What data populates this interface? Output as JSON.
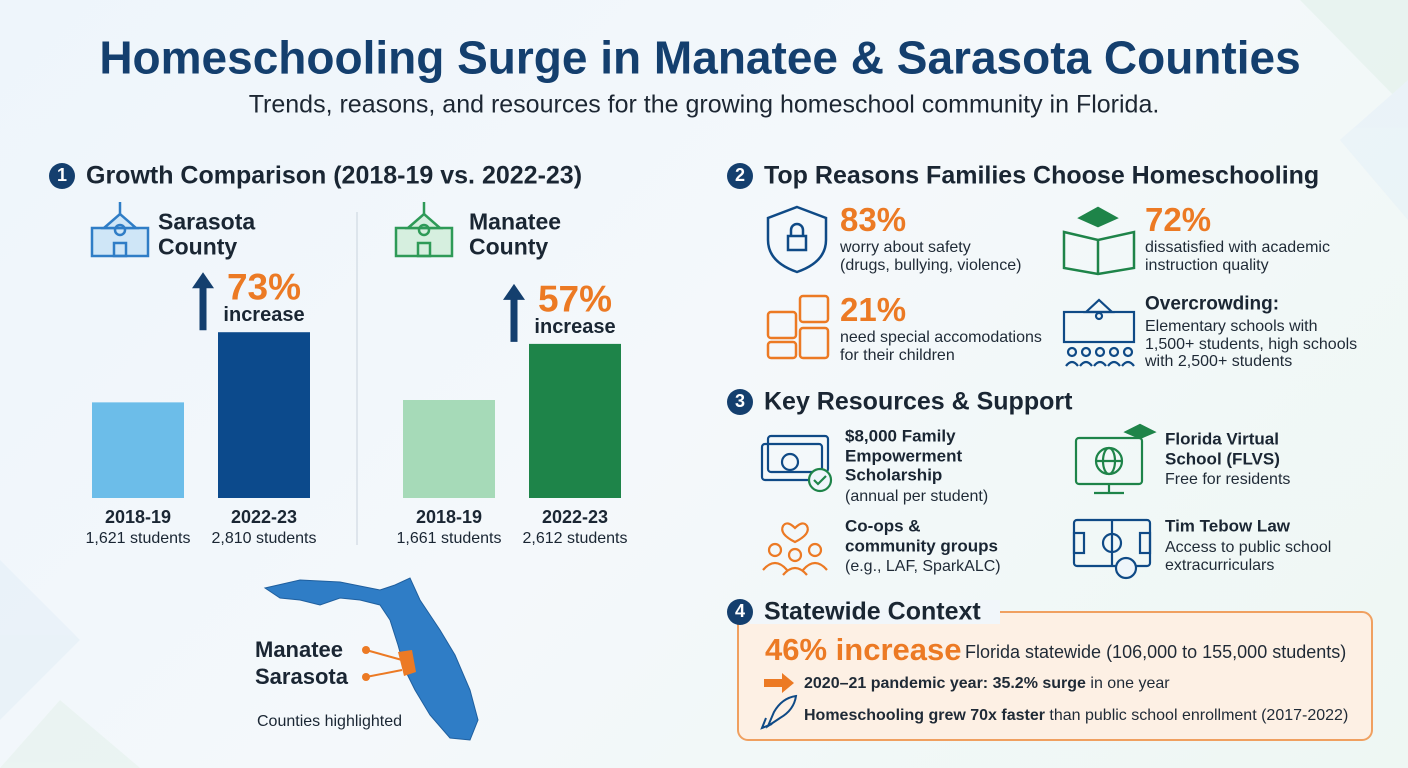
{
  "header": {
    "title": "Homeschooling Surge in Manatee & Sarasota Counties",
    "subtitle": "Trends, reasons, and resources for the growing homeschool community in Florida."
  },
  "growth": {
    "num": 1,
    "title": "Growth Comparison (2018-19 vs. 2022-23)",
    "charts": [
      {
        "type": "bar",
        "name_lines": [
          "Sarasota",
          "County"
        ],
        "change": "73%",
        "change_word": "increase",
        "categories": [
          "2018-19",
          "2022-23"
        ],
        "values": [
          1621,
          2810
        ],
        "value_labels": [
          "1,621 students",
          "2,810 students"
        ],
        "colors": [
          "#6cbde9",
          "#0c4a8c"
        ]
      },
      {
        "type": "bar",
        "name_lines": [
          "Manatee",
          "County"
        ],
        "change": "57%",
        "change_word": "increase",
        "categories": [
          "2018-19",
          "2022-23"
        ],
        "values": [
          1661,
          2612
        ],
        "value_labels": [
          "1,661 students",
          "2,612 students"
        ],
        "colors": [
          "#a6dab8",
          "#1e8449"
        ]
      }
    ],
    "map": {
      "labels": [
        "Manatee",
        "Sarasota"
      ],
      "caption": "Counties highlighted"
    }
  },
  "reasons": {
    "num": 2,
    "title": "Top Reasons Families Choose Homeschooling",
    "items": [
      {
        "stat": "83%",
        "lines": [
          "worry about safety",
          "(drugs, bullying, violence)"
        ]
      },
      {
        "stat": "72%",
        "lines": [
          "dissatisfied with academic",
          "instruction quality"
        ]
      },
      {
        "stat": "21%",
        "lines": [
          "need special accomodations",
          "for their children"
        ]
      },
      {
        "heading": "Overcrowding:",
        "lines": [
          "Elementary schools with",
          "1,500+ students, high schools",
          "with 2,500+ students"
        ]
      }
    ]
  },
  "resources": {
    "num": 3,
    "title": "Key Resources & Support",
    "items": [
      {
        "title_lines": [
          "$8,000 Family",
          "Empowerment",
          "Scholarship"
        ],
        "lines": [
          "(annual per student)"
        ]
      },
      {
        "title_lines": [
          "Florida Virtual",
          "School (FLVS)"
        ],
        "lines": [
          "Free for residents"
        ]
      },
      {
        "title_lines": [
          "Co-ops &",
          "community groups"
        ],
        "lines": [
          "(e.g., LAF, SparkALC)"
        ]
      },
      {
        "title_lines": [
          "Tim Tebow Law"
        ],
        "lines": [
          "Access to public school",
          "extracurriculars"
        ]
      }
    ]
  },
  "statewide": {
    "num": 4,
    "title": "Statewide Context",
    "headline": "46% increase",
    "headline_note": "Florida statewide (106,000 to 155,000 students)",
    "bullets": [
      {
        "bold": "2020–21 pandemic year: 35.2% surge",
        "rest": " in one year"
      },
      {
        "bold": "Homeschooling grew 70x faster",
        "rest": " than public school enrollment (2017-2022)"
      }
    ]
  }
}
